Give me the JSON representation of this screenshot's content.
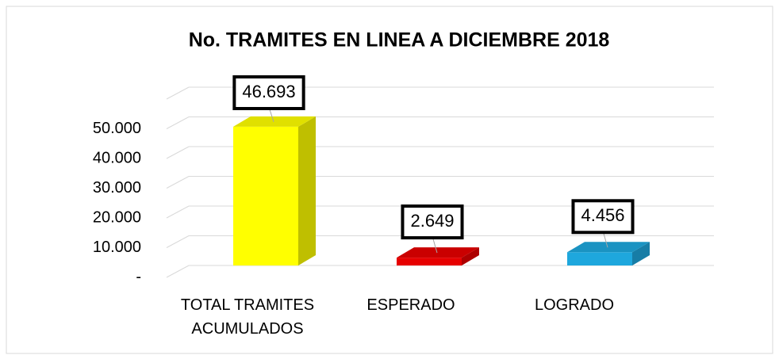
{
  "chart_data": {
    "type": "bar3d",
    "title": "No. TRAMITES EN LINEA  A DICIEMBRE 2018",
    "categories": [
      "TOTAL  TRAMITES ACUMULADOS",
      "ESPERADO",
      "LOGRADO"
    ],
    "values": [
      46693,
      2649,
      4456
    ],
    "value_labels": [
      "46.693",
      "2.649",
      "4.456"
    ],
    "colors": [
      "#ffff00",
      "#e60000",
      "#1ea7dd"
    ],
    "ylim": [
      0,
      60000
    ],
    "yticks": [
      {
        "value": 0,
        "label": "-"
      },
      {
        "value": 10000,
        "label": "10.000"
      },
      {
        "value": 20000,
        "label": "20.000"
      },
      {
        "value": 30000,
        "label": "30.000"
      },
      {
        "value": 40000,
        "label": "40.000"
      },
      {
        "value": 50000,
        "label": "50.000"
      }
    ],
    "grid": true
  }
}
